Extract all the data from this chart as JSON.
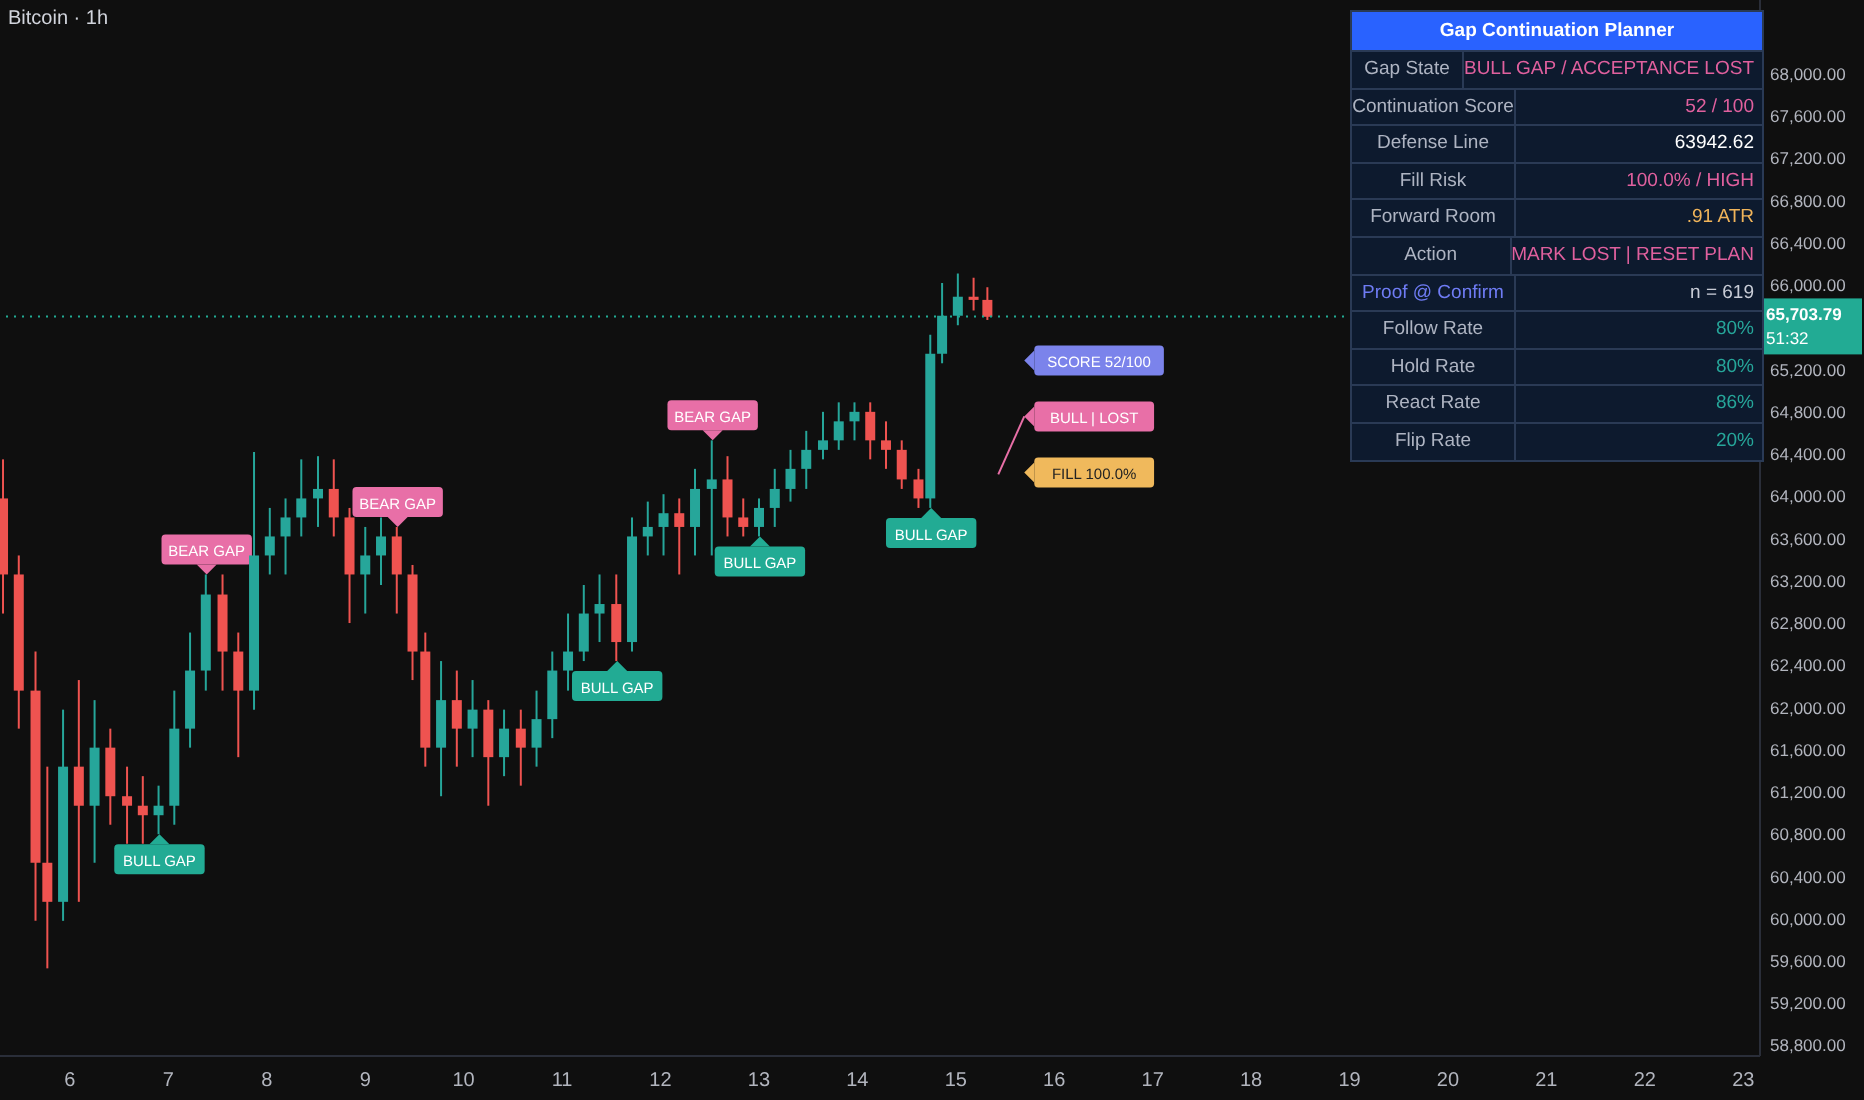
{
  "chart_data": [
    {
      "type": "candlestick",
      "title": "Bitcoin · 1h",
      "x": [
        5.33,
        5.49,
        5.66,
        5.78,
        5.94,
        6.1,
        6.26,
        6.42,
        6.59,
        6.75,
        6.91,
        7.07,
        7.23,
        7.39,
        7.56,
        7.72,
        7.88,
        8.04,
        8.2,
        8.36,
        8.53,
        8.69,
        8.85,
        9.01,
        9.17,
        9.33,
        9.49,
        9.62,
        9.78,
        9.94,
        10.1,
        10.26,
        10.42,
        10.59,
        10.75,
        10.91,
        11.07,
        11.23,
        11.39,
        11.56,
        11.72,
        11.88,
        12.04,
        12.2,
        12.36,
        12.53,
        12.69,
        12.85,
        13.01,
        13.17,
        13.33,
        13.49,
        13.66,
        13.82,
        13.98,
        14.14,
        14.3,
        14.46,
        14.63,
        14.75,
        14.87,
        15.03,
        15.19,
        15.33
      ],
      "ohlc": [
        [
          63980,
          64350,
          62890,
          63260
        ],
        [
          63260,
          63440,
          61800,
          62160
        ],
        [
          62160,
          62530,
          59980,
          60530
        ],
        [
          60530,
          61440,
          59530,
          60160
        ],
        [
          60160,
          61980,
          59980,
          61440
        ],
        [
          61440,
          62260,
          60160,
          61070
        ],
        [
          61070,
          62070,
          60530,
          61620
        ],
        [
          61620,
          61800,
          60890,
          61160
        ],
        [
          61160,
          61440,
          60710,
          61070
        ],
        [
          61070,
          61350,
          60710,
          60980
        ],
        [
          60980,
          61260,
          60800,
          61070
        ],
        [
          61070,
          62160,
          60890,
          61800
        ],
        [
          61800,
          62710,
          61620,
          62350
        ],
        [
          62350,
          63260,
          62160,
          63070
        ],
        [
          63070,
          63260,
          62160,
          62530
        ],
        [
          62530,
          62710,
          61530,
          62160
        ],
        [
          62160,
          64420,
          61980,
          63440
        ],
        [
          63440,
          63890,
          63260,
          63620
        ],
        [
          63620,
          63980,
          63260,
          63800
        ],
        [
          63800,
          64350,
          63620,
          63980
        ],
        [
          63980,
          64380,
          63710,
          64070
        ],
        [
          64070,
          64350,
          63620,
          63800
        ],
        [
          63800,
          63890,
          62800,
          63260
        ],
        [
          63260,
          63710,
          62890,
          63440
        ],
        [
          63440,
          63800,
          63160,
          63620
        ],
        [
          63620,
          63710,
          62890,
          63260
        ],
        [
          63260,
          63350,
          62260,
          62530
        ],
        [
          62530,
          62710,
          61440,
          61620
        ],
        [
          61620,
          62440,
          61160,
          62070
        ],
        [
          62070,
          62350,
          61440,
          61800
        ],
        [
          61800,
          62260,
          61530,
          61980
        ],
        [
          61980,
          62070,
          61070,
          61530
        ],
        [
          61530,
          61980,
          61350,
          61800
        ],
        [
          61800,
          61980,
          61260,
          61620
        ],
        [
          61620,
          62160,
          61440,
          61890
        ],
        [
          61890,
          62530,
          61710,
          62350
        ],
        [
          62350,
          62890,
          62160,
          62530
        ],
        [
          62530,
          63160,
          62440,
          62890
        ],
        [
          62890,
          63260,
          62620,
          62980
        ],
        [
          62980,
          63260,
          62440,
          62620
        ],
        [
          62620,
          63800,
          62530,
          63620
        ],
        [
          63620,
          63950,
          63440,
          63710
        ],
        [
          63710,
          64020,
          63440,
          63840
        ],
        [
          63840,
          63980,
          63260,
          63710
        ],
        [
          63710,
          64260,
          63440,
          64070
        ],
        [
          64070,
          64530,
          63440,
          64160
        ],
        [
          64160,
          64380,
          63620,
          63800
        ],
        [
          63800,
          63980,
          63620,
          63710
        ],
        [
          63710,
          63980,
          63620,
          63890
        ],
        [
          63890,
          64260,
          63710,
          64070
        ],
        [
          64070,
          64440,
          63950,
          64260
        ],
        [
          64260,
          64620,
          64070,
          64440
        ],
        [
          64440,
          64800,
          64350,
          64530
        ],
        [
          64530,
          64890,
          64440,
          64710
        ],
        [
          64710,
          64890,
          64530,
          64800
        ],
        [
          64800,
          64890,
          64350,
          64530
        ],
        [
          64530,
          64710,
          64260,
          64440
        ],
        [
          64440,
          64530,
          64070,
          64160
        ],
        [
          64160,
          64260,
          63890,
          63980
        ],
        [
          63980,
          65530,
          63890,
          65350
        ],
        [
          65350,
          66020,
          65260,
          65710
        ],
        [
          65710,
          66110,
          65620,
          65890
        ],
        [
          65890,
          66070,
          65760,
          65860
        ],
        [
          65860,
          65980,
          65670,
          65700
        ]
      ],
      "xlim": [
        5.29,
        23.17
      ],
      "xticks": [
        6,
        7,
        8,
        9,
        10,
        11,
        12,
        13,
        14,
        15,
        16,
        17,
        18,
        19,
        20,
        21,
        22,
        23
      ],
      "ylim": [
        58700,
        68700
      ],
      "yticks": [
        {
          "value": 58800,
          "label": "58,800.00"
        },
        {
          "value": 59200,
          "label": "59,200.00"
        },
        {
          "value": 59600,
          "label": "59,600.00"
        },
        {
          "value": 60000,
          "label": "60,000.00"
        },
        {
          "value": 60400,
          "label": "60,400.00"
        },
        {
          "value": 60800,
          "label": "60,800.00"
        },
        {
          "value": 61200,
          "label": "61,200.00"
        },
        {
          "value": 61600,
          "label": "61,600.00"
        },
        {
          "value": 62000,
          "label": "62,000.00"
        },
        {
          "value": 62400,
          "label": "62,400.00"
        },
        {
          "value": 62800,
          "label": "62,800.00"
        },
        {
          "value": 63200,
          "label": "63,200.00"
        },
        {
          "value": 63600,
          "label": "63,600.00"
        },
        {
          "value": 64000,
          "label": "64,000.00"
        },
        {
          "value": 64400,
          "label": "64,400.00"
        },
        {
          "value": 64800,
          "label": "64,800.00"
        },
        {
          "value": 65200,
          "label": "65,200.00"
        },
        {
          "value": 66000,
          "label": "66,000.00"
        },
        {
          "value": 66400,
          "label": "66,400.00"
        },
        {
          "value": 66800,
          "label": "66,800.00"
        },
        {
          "value": 67200,
          "label": "67,200.00"
        },
        {
          "value": 67600,
          "label": "67,600.00"
        },
        {
          "value": 68000,
          "label": "68,000.00"
        }
      ],
      "ref_lines": [
        {
          "axis": "y",
          "value": 65703.79,
          "label": "65,703.79",
          "color": "#22ab94",
          "line_style": "dotted"
        }
      ],
      "annotations": [
        {
          "text": "BULL GAP",
          "x": 6.91,
          "y": 60800
        },
        {
          "text": "BEAR GAP",
          "x": 7.39,
          "y": 63260
        },
        {
          "text": "BEAR GAP",
          "x": 9.33,
          "y": 63710
        },
        {
          "text": "BULL GAP",
          "x": 11.56,
          "y": 62440
        },
        {
          "text": "BEAR GAP",
          "x": 12.53,
          "y": 64530
        },
        {
          "text": "BULL GAP",
          "x": 13.01,
          "y": 63620
        },
        {
          "text": "BULL GAP",
          "x": 14.75,
          "y": 63890
        },
        "SCORE 52/100",
        "BULL | LOST",
        "FILL 100.0%",
        "51:32"
      ],
      "grid": false
    },
    {
      "type": "other",
      "title": "Gap Continuation Planner",
      "y_categories": [
        "Gap State",
        "Continuation Score",
        "Defense Line",
        "Fill Risk",
        "Forward Room",
        "Action",
        "Proof @ Confirm",
        "Follow Rate",
        "Hold Rate",
        "React Rate",
        "Flip Rate"
      ],
      "cell_labels": [
        [
          "BULL GAP / ACCEPTANCE LOST"
        ],
        [
          "52 / 100"
        ],
        [
          "63942.62"
        ],
        [
          "100.0% / HIGH"
        ],
        [
          ".91 ATR"
        ],
        [
          "MARK LOST | RESET PLAN"
        ],
        [
          "n = 619"
        ],
        [
          "80%"
        ],
        [
          "80%"
        ],
        [
          "86%"
        ],
        [
          "20%"
        ]
      ],
      "colors": [
        "#e0609e",
        "#e0609e",
        "#ffffff",
        "#e0609e",
        "#f0b45a",
        "#e0609e",
        "#c8ccd6",
        "#26a69a",
        "#26a69a",
        "#26a69a",
        "#26a69a"
      ]
    }
  ]
}
